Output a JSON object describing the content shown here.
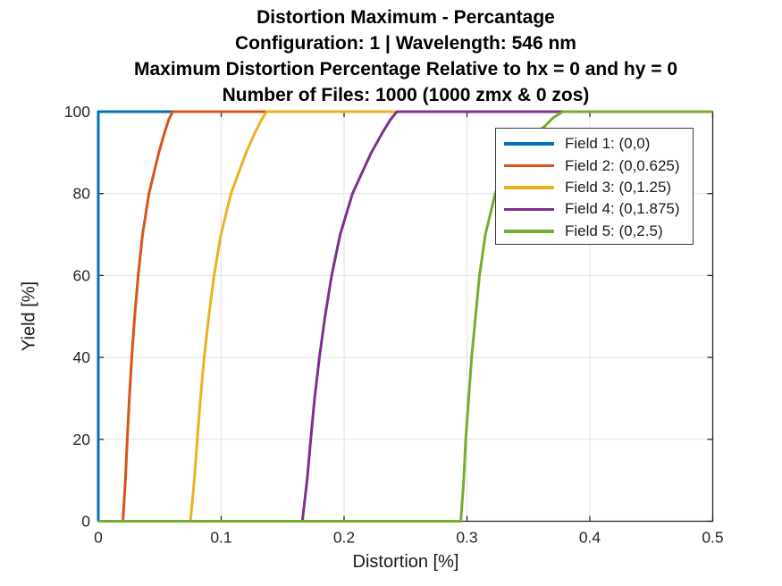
{
  "chart_data": {
    "type": "line",
    "title_lines": [
      "Distortion Maximum - Percantage",
      "Configuration: 1 | Wavelength: 546 nm",
      "Maximum Distortion Percentage Relative to hx = 0 and hy = 0",
      "Number of Files: 1000 (1000 zmx &  0 zos)"
    ],
    "xlabel": "Distortion [%]",
    "ylabel": "Yield [%]",
    "xlim": [
      0,
      0.5
    ],
    "ylim": [
      0,
      100
    ],
    "xticks": [
      0,
      0.1,
      0.2,
      0.3,
      0.4,
      0.5
    ],
    "yticks": [
      0,
      20,
      40,
      60,
      80,
      100
    ],
    "grid": true,
    "legend_position": "upper-right-inside",
    "axis_color": "#262626",
    "grid_color": "#e2e2e2",
    "series": [
      {
        "name": "Field 1: (0,0)",
        "color": "#0072BD",
        "points": [
          [
            0,
            0
          ],
          [
            0,
            100
          ],
          [
            0.5,
            100
          ]
        ]
      },
      {
        "name": "Field 2: (0,0.625)",
        "color": "#D95319",
        "points": [
          [
            0.02,
            0
          ],
          [
            0.022,
            10
          ],
          [
            0.0236,
            20
          ],
          [
            0.0252,
            30
          ],
          [
            0.0272,
            40
          ],
          [
            0.0296,
            50
          ],
          [
            0.0324,
            60
          ],
          [
            0.036,
            70
          ],
          [
            0.0412,
            80
          ],
          [
            0.0452,
            85
          ],
          [
            0.0492,
            90
          ],
          [
            0.054,
            95
          ],
          [
            0.0572,
            98
          ],
          [
            0.0604,
            100
          ],
          [
            0.5,
            100
          ]
        ]
      },
      {
        "name": "Field 3: (0,1.25)",
        "color": "#EDB120",
        "points": [
          [
            0.075,
            0
          ],
          [
            0.0781,
            10
          ],
          [
            0.0806,
            20
          ],
          [
            0.0831,
            30
          ],
          [
            0.0862,
            40
          ],
          [
            0.0899,
            50
          ],
          [
            0.0942,
            60
          ],
          [
            0.0998,
            70
          ],
          [
            0.1079,
            80
          ],
          [
            0.1141,
            85
          ],
          [
            0.1203,
            90
          ],
          [
            0.1277,
            95
          ],
          [
            0.1327,
            98
          ],
          [
            0.137,
            100
          ],
          [
            0.5,
            100
          ]
        ]
      },
      {
        "name": "Field 4: (0,1.875)",
        "color": "#7E2F8E",
        "points": [
          [
            0.166,
            0
          ],
          [
            0.1699,
            10
          ],
          [
            0.1729,
            20
          ],
          [
            0.176,
            30
          ],
          [
            0.1799,
            40
          ],
          [
            0.1845,
            50
          ],
          [
            0.1899,
            60
          ],
          [
            0.1968,
            70
          ],
          [
            0.2068,
            80
          ],
          [
            0.2145,
            85
          ],
          [
            0.2222,
            90
          ],
          [
            0.2315,
            95
          ],
          [
            0.2376,
            98
          ],
          [
            0.243,
            100
          ],
          [
            0.5,
            100
          ]
        ]
      },
      {
        "name": "Field 5: (0,2.5)",
        "color": "#77AC30",
        "points": [
          [
            0,
            0
          ],
          [
            0.295,
            0
          ],
          [
            0.2974,
            10
          ],
          [
            0.299,
            20
          ],
          [
            0.3014,
            30
          ],
          [
            0.3038,
            40
          ],
          [
            0.307,
            50
          ],
          [
            0.3102,
            60
          ],
          [
            0.315,
            70
          ],
          [
            0.323,
            80
          ],
          [
            0.331,
            87
          ],
          [
            0.341,
            92
          ],
          [
            0.357,
            95
          ],
          [
            0.3636,
            96.5
          ],
          [
            0.37,
            98.5
          ],
          [
            0.378,
            100
          ],
          [
            0.5,
            100
          ]
        ]
      }
    ]
  }
}
